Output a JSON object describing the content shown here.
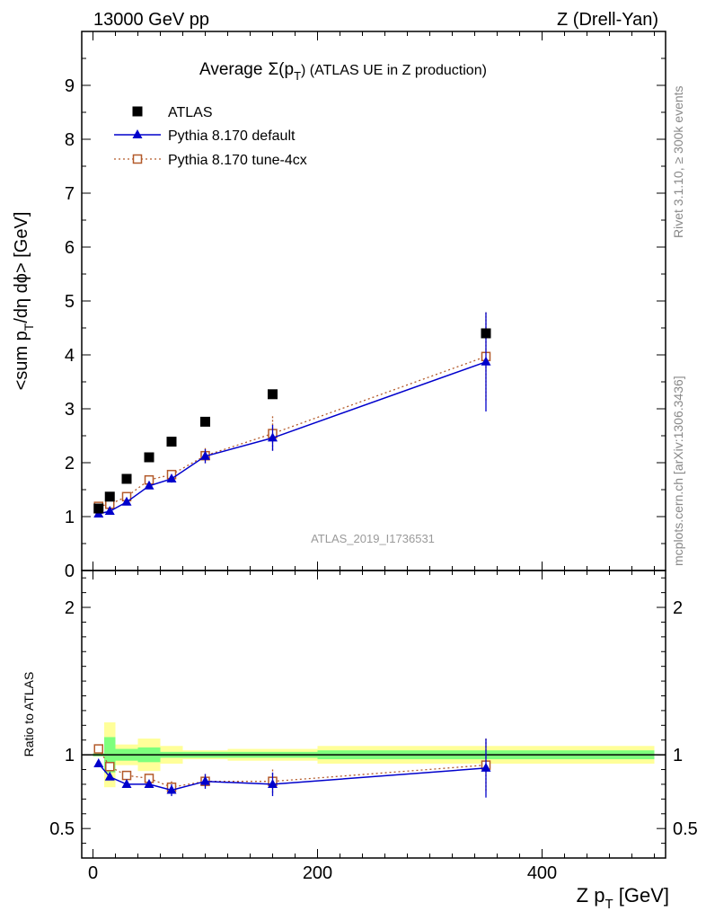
{
  "header": {
    "left": "13000 GeV pp",
    "right": "Z (Drell-Yan)"
  },
  "title": {
    "prefix": "Average",
    "sigma": "Σ(p",
    "sub": "T",
    "suffix": ") (ATLAS UE in Z production)"
  },
  "side_labels": {
    "rivet": "Rivet 3.1.10, ≥ 300k events",
    "mcplots": "mcplots.cern.ch [arXiv:1306.3436]"
  },
  "watermark": "ATLAS_2019_I1736531",
  "axes": {
    "main_ylabel_pre": "<sum p",
    "main_ylabel_sub": "T",
    "main_ylabel_post": "/dη dϕ> [GeV]",
    "ratio_ylabel": "Ratio to ATLAS",
    "xlabel_pre": "Z p",
    "xlabel_sub": "T",
    "xlabel_post": " [GeV]"
  },
  "colors": {
    "atlas": "#000000",
    "default": "#0000cc",
    "tune": "#b35a2a",
    "band_inner": "#7dff7d",
    "band_outer": "#ffff99"
  },
  "chart_data": [
    {
      "type": "line",
      "panel": "main",
      "xlim": [
        -10,
        510
      ],
      "ylim": [
        0,
        10
      ],
      "yticks": [
        0,
        1,
        2,
        3,
        4,
        5,
        6,
        7,
        8,
        9
      ],
      "legend_position": "top-left",
      "series": [
        {
          "name": "ATLAS",
          "marker": "square",
          "points": [
            {
              "x": 5,
              "y": 1.15
            },
            {
              "x": 15,
              "y": 1.37
            },
            {
              "x": 30,
              "y": 1.7
            },
            {
              "x": 50,
              "y": 2.1
            },
            {
              "x": 70,
              "y": 2.39
            },
            {
              "x": 100,
              "y": 2.76
            },
            {
              "x": 160,
              "y": 3.27
            },
            {
              "x": 350,
              "y": 4.4
            }
          ]
        },
        {
          "name": "Pythia 8.170 default",
          "marker": "triangle",
          "points": [
            {
              "x": 5,
              "y": 1.05,
              "err": 0.03
            },
            {
              "x": 15,
              "y": 1.1,
              "err": 0.03
            },
            {
              "x": 30,
              "y": 1.27,
              "err": 0.04
            },
            {
              "x": 50,
              "y": 1.57,
              "err": 0.05
            },
            {
              "x": 70,
              "y": 1.7,
              "err": 0.07
            },
            {
              "x": 100,
              "y": 2.12,
              "err": 0.13
            },
            {
              "x": 160,
              "y": 2.46,
              "err": 0.24
            },
            {
              "x": 350,
              "y": 3.87,
              "err": 0.92
            }
          ]
        },
        {
          "name": "Pythia 8.170 tune-4cx",
          "marker": "open-square",
          "points": [
            {
              "x": 5,
              "y": 1.19,
              "err": 0.03
            },
            {
              "x": 15,
              "y": 1.23,
              "err": 0.03
            },
            {
              "x": 30,
              "y": 1.37,
              "err": 0.04
            },
            {
              "x": 50,
              "y": 1.68,
              "err": 0.05
            },
            {
              "x": 70,
              "y": 1.78,
              "err": 0.08
            },
            {
              "x": 100,
              "y": 2.13,
              "err": 0.14
            },
            {
              "x": 160,
              "y": 2.54,
              "err": 0.32
            },
            {
              "x": 350,
              "y": 3.97,
              "err": 0.82
            }
          ]
        }
      ]
    },
    {
      "type": "line",
      "panel": "ratio",
      "xlim": [
        -10,
        510
      ],
      "ylim": [
        0.3,
        2.25
      ],
      "yticks": [
        0.5,
        1,
        2
      ],
      "xticks": [
        0,
        200,
        400
      ],
      "reference_line": 1.0,
      "bands": [
        {
          "x0": 0,
          "x1": 10,
          "inner": 0.01,
          "outer": 0.01
        },
        {
          "x0": 10,
          "x1": 20,
          "inner": 0.12,
          "outer": 0.22
        },
        {
          "x0": 20,
          "x1": 40,
          "inner": 0.04,
          "outer": 0.07
        },
        {
          "x0": 40,
          "x1": 60,
          "inner": 0.05,
          "outer": 0.11
        },
        {
          "x0": 60,
          "x1": 80,
          "inner": 0.02,
          "outer": 0.06
        },
        {
          "x0": 80,
          "x1": 120,
          "inner": 0.02,
          "outer": 0.03
        },
        {
          "x0": 120,
          "x1": 200,
          "inner": 0.02,
          "outer": 0.04
        },
        {
          "x0": 200,
          "x1": 500,
          "inner": 0.03,
          "outer": 0.06
        }
      ],
      "series": [
        {
          "name": "Pythia 8.170 default",
          "points": [
            {
              "x": 5,
              "y": 0.94,
              "err": 0.0
            },
            {
              "x": 15,
              "y": 0.85,
              "err": 0.0
            },
            {
              "x": 30,
              "y": 0.8,
              "err": 0.0
            },
            {
              "x": 50,
              "y": 0.8,
              "err": 0.02
            },
            {
              "x": 70,
              "y": 0.76,
              "err": 0.04
            },
            {
              "x": 100,
              "y": 0.82,
              "err": 0.05
            },
            {
              "x": 160,
              "y": 0.8,
              "err": 0.08
            },
            {
              "x": 350,
              "y": 0.91,
              "err": 0.2
            }
          ]
        },
        {
          "name": "Pythia 8.170 tune-4cx",
          "points": [
            {
              "x": 5,
              "y": 1.04,
              "err": 0.0
            },
            {
              "x": 15,
              "y": 0.92,
              "err": 0.0
            },
            {
              "x": 30,
              "y": 0.86,
              "err": 0.0
            },
            {
              "x": 50,
              "y": 0.84,
              "err": 0.02
            },
            {
              "x": 70,
              "y": 0.78,
              "err": 0.04
            },
            {
              "x": 100,
              "y": 0.82,
              "err": 0.05
            },
            {
              "x": 160,
              "y": 0.82,
              "err": 0.08
            },
            {
              "x": 350,
              "y": 0.93,
              "err": 0.18
            }
          ]
        }
      ]
    }
  ]
}
